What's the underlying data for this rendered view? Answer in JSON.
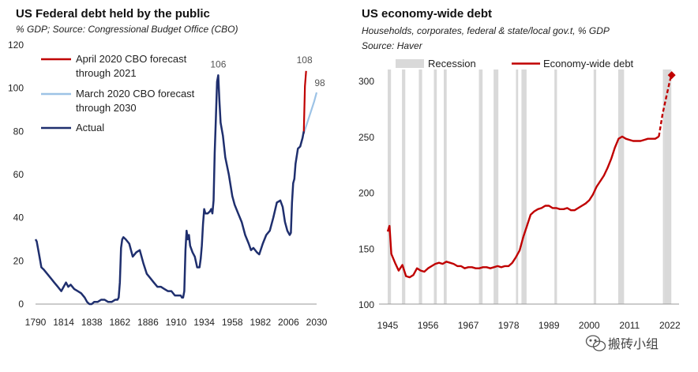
{
  "chart_data": [
    {
      "type": "line",
      "title": "US Federal debt held by the public",
      "subtitle": "% GDP; Source: Congressional Budget Office (CBO)",
      "xlabel": "",
      "ylabel": "",
      "xlim": [
        1790,
        2030
      ],
      "ylim": [
        0,
        120
      ],
      "x_ticks": [
        1790,
        1814,
        1838,
        1862,
        1886,
        1910,
        1934,
        1958,
        1982,
        2006,
        2030
      ],
      "y_ticks": [
        0,
        20,
        40,
        60,
        80,
        100,
        120
      ],
      "legend_position": "top-left",
      "series": [
        {
          "name": "April 2020 CBO forecast through 2021",
          "legend_lines": [
            "April 2020 CBO forecast",
            "through 2021"
          ],
          "color": "#c00000",
          "x": [
            2019,
            2020,
            2021
          ],
          "y": [
            79,
            101,
            108
          ]
        },
        {
          "name": "March 2020 CBO forecast through 2030",
          "legend_lines": [
            "March 2020 CBO forecast",
            "through 2030"
          ],
          "color": "#9dc3e6",
          "x": [
            2019,
            2022,
            2025,
            2028,
            2030
          ],
          "y": [
            79,
            84,
            89,
            94,
            98
          ]
        },
        {
          "name": "Actual",
          "legend_lines": [
            "Actual"
          ],
          "color": "#1f2f6e",
          "x": [
            1790,
            1791,
            1793,
            1795,
            1797,
            1800,
            1803,
            1806,
            1809,
            1812,
            1814,
            1816,
            1818,
            1820,
            1823,
            1826,
            1829,
            1832,
            1834,
            1836,
            1838,
            1840,
            1843,
            1846,
            1849,
            1852,
            1855,
            1858,
            1860,
            1861,
            1862,
            1863,
            1864,
            1865,
            1867,
            1870,
            1873,
            1876,
            1879,
            1882,
            1885,
            1888,
            1891,
            1894,
            1897,
            1900,
            1903,
            1906,
            1909,
            1912,
            1914,
            1915,
            1916,
            1917,
            1918,
            1919,
            1920,
            1921,
            1922,
            1924,
            1926,
            1928,
            1930,
            1931,
            1932,
            1933,
            1934,
            1935,
            1937,
            1939,
            1940,
            1941,
            1942,
            1943,
            1944,
            1945,
            1946,
            1947,
            1948,
            1950,
            1952,
            1955,
            1958,
            1960,
            1963,
            1966,
            1969,
            1972,
            1974,
            1976,
            1979,
            1981,
            1984,
            1987,
            1990,
            1993,
            1996,
            1999,
            2001,
            2003,
            2005,
            2007,
            2008,
            2009,
            2010,
            2011,
            2012,
            2014,
            2016,
            2017,
            2018,
            2019
          ],
          "y": [
            30,
            29,
            23,
            17,
            16,
            14,
            12,
            10,
            8,
            6,
            8,
            10,
            8,
            9,
            7,
            6,
            5,
            3,
            1,
            0,
            0,
            1,
            1,
            2,
            2,
            1,
            1,
            2,
            2,
            3,
            10,
            26,
            30,
            31,
            30,
            28,
            22,
            24,
            25,
            19,
            14,
            12,
            10,
            8,
            8,
            7,
            6,
            6,
            4,
            4,
            4,
            3,
            3,
            6,
            25,
            34,
            30,
            32,
            27,
            24,
            22,
            17,
            17,
            21,
            27,
            37,
            44,
            42,
            42,
            43,
            44,
            42,
            48,
            70,
            86,
            103,
            106,
            94,
            84,
            78,
            68,
            60,
            50,
            46,
            42,
            38,
            32,
            28,
            25,
            26,
            24,
            23,
            28,
            32,
            34,
            40,
            47,
            48,
            45,
            38,
            34,
            32,
            33,
            47,
            56,
            58,
            65,
            72,
            73,
            75,
            77,
            80
          ]
        }
      ],
      "annotations": [
        {
          "text": "106",
          "x": 1946,
          "y": 106
        },
        {
          "text": "108",
          "x": 2021,
          "y": 108
        },
        {
          "text": "98",
          "x": 2030,
          "y": 98
        }
      ]
    },
    {
      "type": "line",
      "title": "US economy-wide debt",
      "subtitle_lines": [
        "Households, corporates, federal & state/local gov.t, % GDP",
        "Source: Haver"
      ],
      "xlabel": "",
      "ylabel": "",
      "xlim": [
        1945,
        2023
      ],
      "ylim": [
        100,
        310
      ],
      "x_ticks": [
        1945,
        1956,
        1967,
        1978,
        1989,
        2000,
        2011,
        2022
      ],
      "y_ticks": [
        100,
        150,
        200,
        250,
        300
      ],
      "legend_position": "top",
      "legend": {
        "recession": "Recession",
        "debt": "Economy-wide debt"
      },
      "recession_color": "#d9d9d9",
      "debt_color": "#c00000",
      "recessions": [
        [
          1945.0,
          1945.9
        ],
        [
          1948.9,
          1949.8
        ],
        [
          1953.5,
          1954.4
        ],
        [
          1957.6,
          1958.4
        ],
        [
          1960.3,
          1961.1
        ],
        [
          1969.9,
          1970.9
        ],
        [
          1973.9,
          1975.2
        ],
        [
          1980.0,
          1980.6
        ],
        [
          1981.5,
          1982.9
        ],
        [
          1990.5,
          1991.2
        ],
        [
          2001.2,
          2001.9
        ],
        [
          2007.9,
          2009.5
        ],
        [
          2020.1,
          2020.6
        ],
        [
          2020.6,
          2022.4
        ]
      ],
      "series": [
        {
          "name": "Economy-wide debt",
          "x": [
            1945,
            1945.5,
            1946,
            1947,
            1948,
            1949,
            1950,
            1951,
            1952,
            1953,
            1954,
            1955,
            1956,
            1957,
            1958,
            1959,
            1960,
            1961,
            1962,
            1963,
            1964,
            1965,
            1966,
            1967,
            1968,
            1969,
            1970,
            1971,
            1972,
            1973,
            1974,
            1975,
            1976,
            1977,
            1978,
            1979,
            1980,
            1981,
            1982,
            1983,
            1984,
            1985,
            1986,
            1987,
            1988,
            1989,
            1990,
            1991,
            1992,
            1993,
            1994,
            1995,
            1996,
            1997,
            1998,
            1999,
            2000,
            2001,
            2002,
            2003,
            2004,
            2005,
            2006,
            2007,
            2008,
            2009,
            2010,
            2011,
            2012,
            2013,
            2014,
            2015,
            2016,
            2017,
            2018,
            2019
          ],
          "y": [
            165,
            170,
            145,
            137,
            130,
            135,
            125,
            124,
            126,
            132,
            130,
            129,
            132,
            134,
            136,
            137,
            136,
            138,
            137,
            136,
            134,
            134,
            132,
            133,
            133,
            132,
            132,
            133,
            133,
            132,
            133,
            134,
            133,
            134,
            134,
            137,
            142,
            148,
            160,
            170,
            180,
            183,
            185,
            186,
            188,
            188,
            186,
            186,
            185,
            185,
            186,
            184,
            184,
            186,
            188,
            190,
            193,
            198,
            205,
            210,
            215,
            222,
            230,
            240,
            248,
            250,
            248,
            247,
            246,
            246,
            246,
            247,
            248,
            248,
            248,
            250
          ]
        },
        {
          "name": "Economy-wide debt (dashed projection)",
          "dashed": true,
          "x": [
            2019,
            2020,
            2021,
            2022,
            2022.5
          ],
          "y": [
            250,
            270,
            285,
            300,
            305
          ]
        }
      ]
    }
  ],
  "watermark": "搬砖小组",
  "watermark_icon": "wechat-icon"
}
